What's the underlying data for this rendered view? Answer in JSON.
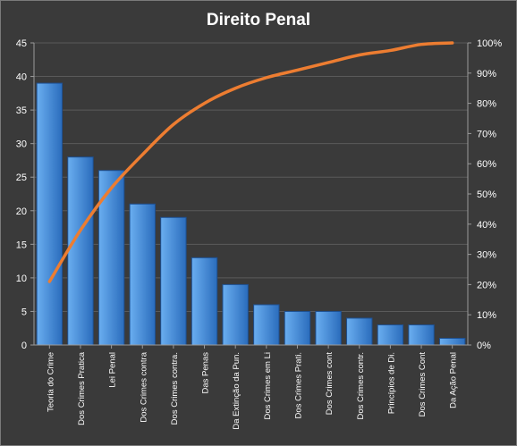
{
  "chart_data": {
    "type": "bar",
    "title": "Direito  Penal",
    "categories": [
      "Teoria do Crime",
      "Dos Crimes Pratica",
      "Lei Penal",
      "Dos Crimes contra",
      "Dos Crimes contra.",
      "Das Penas",
      "Da Extinção da Pun.",
      "Dos Crimes em Li",
      "Dos Crimes Prati.",
      "Dos Crimes cont",
      "Dos Crimes contr.",
      "Princípios de Di.",
      "Dos Crimes Cont",
      "Da Ação Penal"
    ],
    "series": [
      {
        "type": "bar",
        "axis": "left",
        "values": [
          39,
          28,
          26,
          21,
          19,
          13,
          9,
          6,
          5,
          5,
          4,
          3,
          3,
          1
        ]
      },
      {
        "type": "line",
        "axis": "right",
        "values": [
          21,
          38,
          52,
          63,
          73,
          80,
          85,
          88.5,
          91,
          93.5,
          96,
          97.5,
          99.5,
          100
        ]
      }
    ],
    "ylim_left": [
      0,
      45
    ],
    "yticks_left": [
      "0",
      "5",
      "10",
      "15",
      "20",
      "25",
      "30",
      "35",
      "40",
      "45"
    ],
    "ylim_right": [
      0,
      100
    ],
    "yticks_right": [
      "0%",
      "10%",
      "20%",
      "30%",
      "40%",
      "50%",
      "60%",
      "70%",
      "80%",
      "90%",
      "100%"
    ],
    "grid": true,
    "legend": "none",
    "colors": {
      "background": "#3a3a3a",
      "plot_background": "#3a3a3a",
      "bar_light": "#6aaef0",
      "bar_dark": "#2a6cbc",
      "bar_edge": "#1e4f8f",
      "line": "#ed7d31",
      "grid": "#5a5a5a",
      "axis": "#9a9a9a",
      "text": "#ffffff"
    }
  }
}
